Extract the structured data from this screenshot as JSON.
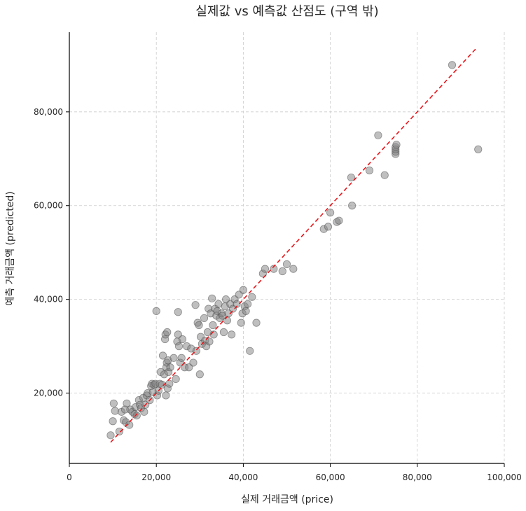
{
  "chart_data": {
    "type": "scatter",
    "title": "실제값 vs 예측값 산점도 (구역 밖)",
    "xlabel": "실제 거래금액 (price)",
    "ylabel": "예측 거래금액 (predicted)",
    "xlim": [
      0,
      100000
    ],
    "ylim": [
      5000,
      97000
    ],
    "x_ticks": [
      0,
      20000,
      40000,
      60000,
      80000,
      100000
    ],
    "x_tick_labels": [
      "0",
      "20,000",
      "40,000",
      "60,000",
      "80,000",
      "100,000"
    ],
    "y_ticks": [
      20000,
      40000,
      60000,
      80000
    ],
    "y_tick_labels": [
      "20,000",
      "40,000",
      "60,000",
      "80,000"
    ],
    "grid": true,
    "point_color": "#808080",
    "reference_line": {
      "style": "dashed",
      "color": "#e8171c",
      "from": [
        9500,
        9500
      ],
      "to": [
        93500,
        93500
      ]
    },
    "points": [
      [
        9500,
        11000
      ],
      [
        10000,
        14000
      ],
      [
        10200,
        17800
      ],
      [
        10500,
        16200
      ],
      [
        11500,
        11800
      ],
      [
        12000,
        16000
      ],
      [
        12500,
        14200
      ],
      [
        12800,
        16500
      ],
      [
        13000,
        13800
      ],
      [
        13200,
        17800
      ],
      [
        13800,
        13200
      ],
      [
        14000,
        16500
      ],
      [
        14500,
        16000
      ],
      [
        15000,
        15500
      ],
      [
        15200,
        17000
      ],
      [
        15500,
        15200
      ],
      [
        16000,
        18500
      ],
      [
        16200,
        17500
      ],
      [
        16500,
        16800
      ],
      [
        17000,
        19000
      ],
      [
        17200,
        16000
      ],
      [
        17500,
        17500
      ],
      [
        17800,
        19500
      ],
      [
        18000,
        20000
      ],
      [
        18500,
        18500
      ],
      [
        18800,
        21500
      ],
      [
        19000,
        22000
      ],
      [
        19200,
        20200
      ],
      [
        19500,
        21800
      ],
      [
        19800,
        22000
      ],
      [
        20000,
        37500
      ],
      [
        20200,
        19500
      ],
      [
        20500,
        20500
      ],
      [
        20800,
        22000
      ],
      [
        21000,
        24500
      ],
      [
        21300,
        21800
      ],
      [
        21500,
        28000
      ],
      [
        21800,
        24000
      ],
      [
        22000,
        31500
      ],
      [
        22100,
        32500
      ],
      [
        22200,
        19500
      ],
      [
        22300,
        25500
      ],
      [
        22400,
        26500
      ],
      [
        22500,
        33000
      ],
      [
        22600,
        21000
      ],
      [
        22700,
        27000
      ],
      [
        22800,
        24500
      ],
      [
        23000,
        22000
      ],
      [
        23200,
        25500
      ],
      [
        24000,
        27500
      ],
      [
        24500,
        23000
      ],
      [
        24800,
        31000
      ],
      [
        25000,
        32500
      ],
      [
        25000,
        37300
      ],
      [
        25200,
        30000
      ],
      [
        25500,
        26500
      ],
      [
        25800,
        27500
      ],
      [
        26000,
        31500
      ],
      [
        26500,
        25500
      ],
      [
        27000,
        30000
      ],
      [
        27500,
        25500
      ],
      [
        28000,
        29500
      ],
      [
        28500,
        26500
      ],
      [
        29000,
        38800
      ],
      [
        29200,
        29000
      ],
      [
        29500,
        35000
      ],
      [
        29800,
        34500
      ],
      [
        30000,
        24000
      ],
      [
        30200,
        32000
      ],
      [
        30500,
        30500
      ],
      [
        31000,
        36000
      ],
      [
        31200,
        31200
      ],
      [
        31500,
        30000
      ],
      [
        31800,
        33000
      ],
      [
        32000,
        38000
      ],
      [
        32200,
        31000
      ],
      [
        32500,
        37000
      ],
      [
        32800,
        40200
      ],
      [
        33000,
        34500
      ],
      [
        33200,
        32500
      ],
      [
        33500,
        38000
      ],
      [
        33800,
        36500
      ],
      [
        34000,
        37500
      ],
      [
        34300,
        39000
      ],
      [
        34600,
        36000
      ],
      [
        35000,
        37000
      ],
      [
        35200,
        36500
      ],
      [
        35500,
        33000
      ],
      [
        35800,
        38500
      ],
      [
        36000,
        40000
      ],
      [
        36300,
        35500
      ],
      [
        36600,
        37000
      ],
      [
        37000,
        39000
      ],
      [
        37300,
        32500
      ],
      [
        37600,
        38000
      ],
      [
        38000,
        40000
      ],
      [
        38500,
        39000
      ],
      [
        39000,
        41000
      ],
      [
        39500,
        35000
      ],
      [
        39800,
        37000
      ],
      [
        40000,
        42000
      ],
      [
        40300,
        38500
      ],
      [
        40600,
        37500
      ],
      [
        41000,
        39000
      ],
      [
        41500,
        29000
      ],
      [
        42000,
        40500
      ],
      [
        43000,
        35000
      ],
      [
        44500,
        45500
      ],
      [
        45000,
        46500
      ],
      [
        47000,
        46500
      ],
      [
        49000,
        46000
      ],
      [
        50000,
        47500
      ],
      [
        51500,
        46500
      ],
      [
        58500,
        55000
      ],
      [
        59500,
        55500
      ],
      [
        60000,
        58500
      ],
      [
        61500,
        56500
      ],
      [
        62000,
        56800
      ],
      [
        64800,
        66000
      ],
      [
        65000,
        60000
      ],
      [
        69000,
        67500
      ],
      [
        71000,
        75000
      ],
      [
        72500,
        66500
      ],
      [
        75000,
        71000
      ],
      [
        75000,
        71500
      ],
      [
        75000,
        72000
      ],
      [
        75000,
        72500
      ],
      [
        75200,
        73000
      ],
      [
        88000,
        90000
      ],
      [
        94000,
        72000
      ]
    ]
  }
}
